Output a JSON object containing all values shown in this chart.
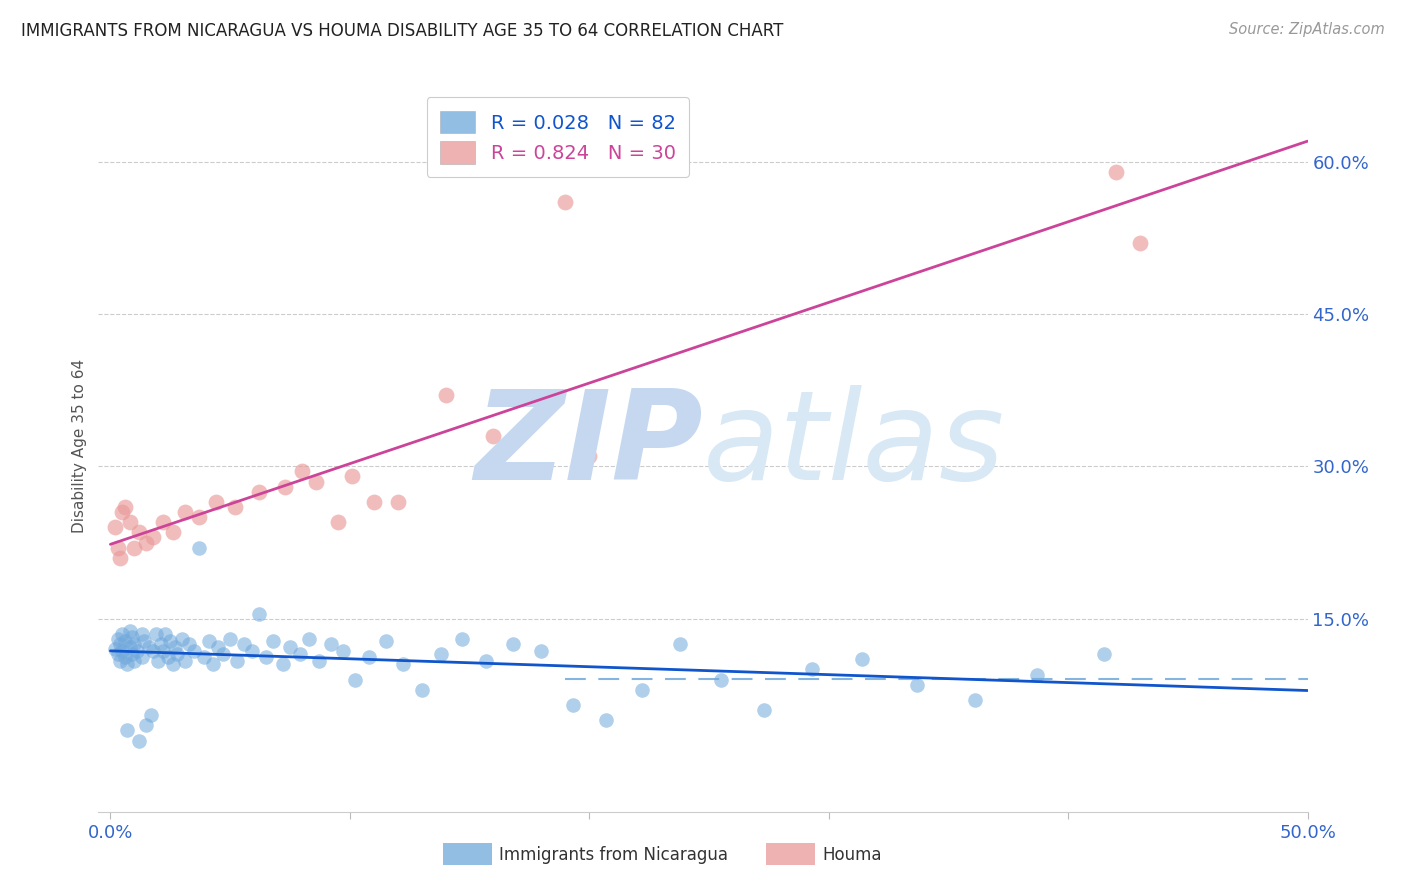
{
  "title": "IMMIGRANTS FROM NICARAGUA VS HOUMA DISABILITY AGE 35 TO 64 CORRELATION CHART",
  "source": "Source: ZipAtlas.com",
  "ylabel": "Disability Age 35 to 64",
  "xlim": [
    0.0,
    0.5
  ],
  "ylim": [
    -0.04,
    0.68
  ],
  "xticks": [
    0.0,
    0.1,
    0.2,
    0.3,
    0.4,
    0.5
  ],
  "xticklabels": [
    "0.0%",
    "",
    "",
    "",
    "",
    "50.0%"
  ],
  "yticks_right": [
    0.15,
    0.3,
    0.45,
    0.6
  ],
  "blue_R": 0.028,
  "blue_N": 82,
  "pink_R": 0.824,
  "pink_N": 30,
  "blue_color": "#6fa8dc",
  "pink_color": "#ea9999",
  "blue_line_color": "#1155cc",
  "pink_line_color": "#cc4499",
  "blue_dashed_color": "#6fa8dc",
  "watermark_zip": "ZIP",
  "watermark_atlas": "atlas",
  "watermark_color": "#d0dff0",
  "title_fontsize": 12,
  "tick_label_color": "#3366cc",
  "legend_label1": "R = 0.028   N = 82",
  "legend_label2": "R = 0.824   N = 30",
  "legend_text_color1": "#1155cc",
  "legend_text_color2": "#cc4499",
  "bottom_label1": "Immigrants from Nicaragua",
  "bottom_label2": "Houma",
  "blue_points_x": [
    0.002,
    0.003,
    0.003,
    0.004,
    0.004,
    0.005,
    0.005,
    0.006,
    0.006,
    0.007,
    0.007,
    0.008,
    0.008,
    0.009,
    0.009,
    0.01,
    0.01,
    0.011,
    0.012,
    0.013,
    0.013,
    0.014,
    0.015,
    0.016,
    0.017,
    0.018,
    0.019,
    0.02,
    0.021,
    0.022,
    0.023,
    0.024,
    0.025,
    0.026,
    0.027,
    0.028,
    0.03,
    0.031,
    0.033,
    0.035,
    0.037,
    0.039,
    0.041,
    0.043,
    0.045,
    0.047,
    0.05,
    0.053,
    0.056,
    0.059,
    0.062,
    0.065,
    0.068,
    0.072,
    0.075,
    0.079,
    0.083,
    0.087,
    0.092,
    0.097,
    0.102,
    0.108,
    0.115,
    0.122,
    0.13,
    0.138,
    0.147,
    0.157,
    0.168,
    0.18,
    0.193,
    0.207,
    0.222,
    0.238,
    0.255,
    0.273,
    0.293,
    0.314,
    0.337,
    0.361,
    0.387,
    0.415
  ],
  "blue_points_y": [
    0.12,
    0.115,
    0.13,
    0.108,
    0.125,
    0.118,
    0.135,
    0.112,
    0.128,
    0.105,
    0.04,
    0.122,
    0.138,
    0.115,
    0.132,
    0.108,
    0.125,
    0.118,
    0.03,
    0.135,
    0.112,
    0.128,
    0.045,
    0.122,
    0.055,
    0.118,
    0.135,
    0.108,
    0.125,
    0.118,
    0.135,
    0.112,
    0.128,
    0.105,
    0.122,
    0.115,
    0.13,
    0.108,
    0.125,
    0.118,
    0.22,
    0.112,
    0.128,
    0.105,
    0.122,
    0.115,
    0.13,
    0.108,
    0.125,
    0.118,
    0.155,
    0.112,
    0.128,
    0.105,
    0.122,
    0.115,
    0.13,
    0.108,
    0.125,
    0.118,
    0.09,
    0.112,
    0.128,
    0.105,
    0.08,
    0.115,
    0.13,
    0.108,
    0.125,
    0.118,
    0.065,
    0.05,
    0.08,
    0.125,
    0.09,
    0.06,
    0.1,
    0.11,
    0.085,
    0.07,
    0.095,
    0.115
  ],
  "pink_points_x": [
    0.002,
    0.003,
    0.004,
    0.005,
    0.006,
    0.008,
    0.01,
    0.012,
    0.015,
    0.018,
    0.022,
    0.026,
    0.031,
    0.037,
    0.044,
    0.052,
    0.062,
    0.073,
    0.086,
    0.101,
    0.19,
    0.14,
    0.16,
    0.12,
    0.2,
    0.42,
    0.43,
    0.08,
    0.095,
    0.11
  ],
  "pink_points_y": [
    0.24,
    0.22,
    0.21,
    0.255,
    0.26,
    0.245,
    0.22,
    0.235,
    0.225,
    0.23,
    0.245,
    0.235,
    0.255,
    0.25,
    0.265,
    0.26,
    0.275,
    0.28,
    0.285,
    0.29,
    0.56,
    0.37,
    0.33,
    0.265,
    0.31,
    0.59,
    0.52,
    0.295,
    0.245,
    0.265
  ]
}
